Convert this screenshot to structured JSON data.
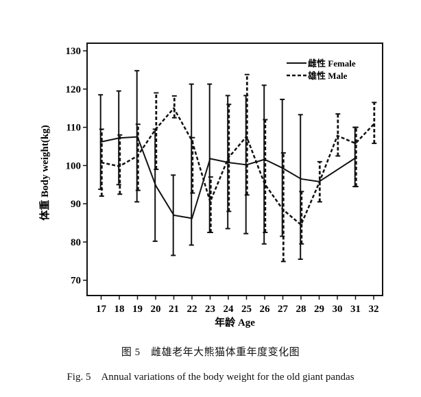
{
  "chart_data": {
    "type": "line",
    "xlabel": "年龄 Age",
    "ylabel": "体重 Body weight(kg)",
    "categories": [
      "17",
      "18",
      "19",
      "20",
      "21",
      "22",
      "23",
      "24",
      "25",
      "26",
      "27",
      "28",
      "29",
      "30",
      "31",
      "32"
    ],
    "yticks": [
      70,
      80,
      90,
      100,
      110,
      120,
      130
    ],
    "ylim": [
      66,
      132
    ],
    "legend_position": "top-right",
    "error_bars": true,
    "series": [
      {
        "name": "雌性 Female",
        "style": "solid",
        "values": [
          106.2,
          107.2,
          107.5,
          94.8,
          87.0,
          86.2,
          101.8,
          100.8,
          100.2,
          101.6,
          99.3,
          96.5,
          95.8,
          null,
          102.0,
          null
        ],
        "err_low": [
          93.8,
          95.0,
          90.5,
          80.2,
          76.5,
          79.2,
          82.5,
          83.5,
          82.2,
          79.5,
          81.5,
          75.5,
          null,
          null,
          94.5,
          null
        ],
        "err_high": [
          118.5,
          119.5,
          124.8,
          109.5,
          97.5,
          121.3,
          121.3,
          118.3,
          118.3,
          121.0,
          117.3,
          113.3,
          null,
          null,
          110.0,
          null
        ]
      },
      {
        "name": "雄性 Male",
        "style": "dashed",
        "values": [
          100.8,
          99.8,
          102.5,
          109.5,
          115.0,
          106.5,
          90.5,
          102.0,
          107.6,
          95.2,
          88.5,
          84.5,
          95.5,
          107.8,
          105.8,
          110.8
        ],
        "err_low": [
          92.0,
          92.5,
          93.5,
          99.0,
          112.5,
          92.8,
          82.5,
          88.0,
          92.3,
          82.5,
          74.9,
          79.5,
          90.5,
          102.5,
          94.5,
          105.8
        ],
        "err_high": [
          109.5,
          108.0,
          110.8,
          119.0,
          118.2,
          107.3,
          97.0,
          116.0,
          123.8,
          112.0,
          103.3,
          93.2,
          101.0,
          113.5,
          110.0,
          116.5
        ]
      }
    ]
  },
  "captions": {
    "cn": "图 5　雌雄老年大熊猫体重年度变化图",
    "en": "Fig. 5　Annual variations of the body weight for the old giant pandas"
  }
}
